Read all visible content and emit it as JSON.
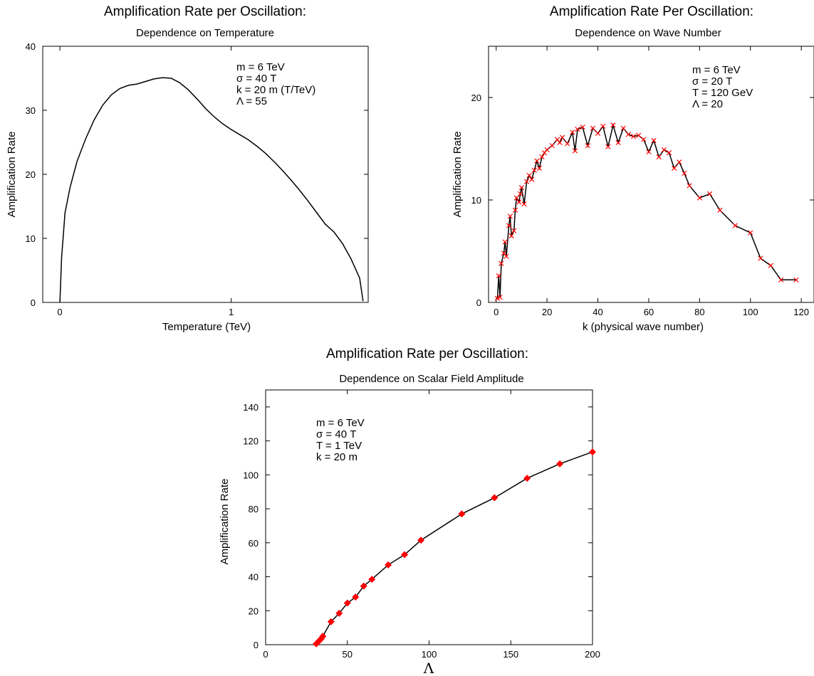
{
  "chart_data": [
    {
      "type": "line",
      "title": "Amplification Rate per Oscillation:",
      "subtitle": "Dependence on Temperature",
      "xlabel": "Temperature (TeV)",
      "ylabel": "Amplification Rate",
      "xlim": [
        -0.1,
        1.8
      ],
      "ylim": [
        0,
        40
      ],
      "x_ticks": [
        0,
        1
      ],
      "y_ticks": [
        0,
        10,
        20,
        30,
        40
      ],
      "grid": false,
      "annotations": [
        "m = 6 TeV",
        "σ = 40 T",
        "k = 20 m (T/TeV)",
        "Λ = 55"
      ],
      "series": [
        {
          "color": "#000000",
          "marker": "none",
          "x": [
            0.0,
            0.01,
            0.03,
            0.06,
            0.1,
            0.15,
            0.2,
            0.25,
            0.3,
            0.35,
            0.4,
            0.45,
            0.5,
            0.55,
            0.6,
            0.65,
            0.7,
            0.75,
            0.8,
            0.85,
            0.9,
            0.95,
            1.0,
            1.05,
            1.1,
            1.15,
            1.2,
            1.25,
            1.3,
            1.35,
            1.4,
            1.45,
            1.5,
            1.55,
            1.6,
            1.65,
            1.7,
            1.75,
            1.77
          ],
          "y": [
            0,
            7,
            14,
            18,
            22,
            25.5,
            28.5,
            30.8,
            32.4,
            33.4,
            33.9,
            34.1,
            34.5,
            34.9,
            35.1,
            35.0,
            34.3,
            33.2,
            31.8,
            30.3,
            29.0,
            27.9,
            27.0,
            26.2,
            25.4,
            24.4,
            23.3,
            22.0,
            20.6,
            19.1,
            17.5,
            15.8,
            14.0,
            12.2,
            11.0,
            9.2,
            6.8,
            3.8,
            0.2
          ]
        }
      ]
    },
    {
      "type": "line",
      "title": "Amplification Rate Per Oscillation:",
      "subtitle": "Dependence on Wave Number",
      "xlabel": "k (physical wave number)",
      "ylabel": "Amplification Rate",
      "xlim": [
        -3,
        125
      ],
      "ylim": [
        0,
        25
      ],
      "x_ticks": [
        0,
        20,
        40,
        60,
        80,
        100,
        120
      ],
      "y_ticks": [
        0,
        10,
        20
      ],
      "grid": false,
      "annotations": [
        "m = 6 TeV",
        "σ = 20 T",
        "T = 120 GeV",
        "Λ = 20"
      ],
      "series": [
        {
          "color": "#000000",
          "marker": "x",
          "marker_color": "#ff0000",
          "x": [
            0.5,
            1,
            1.5,
            2,
            3,
            3.5,
            4,
            5,
            5.5,
            6,
            7,
            7.5,
            8,
            9,
            9.5,
            10,
            11,
            12,
            13,
            14,
            15,
            16,
            17,
            18,
            19,
            20,
            22,
            24,
            25,
            26,
            28,
            30,
            31,
            32,
            34,
            36,
            38,
            40,
            42,
            44,
            46,
            48,
            50,
            52,
            54,
            56,
            58,
            60,
            62,
            64,
            66,
            68,
            70,
            72,
            74,
            76,
            80,
            84,
            88,
            94,
            100,
            104,
            108,
            112,
            118
          ],
          "y": [
            0.4,
            2.6,
            0.5,
            3.8,
            4.8,
            5.9,
            4.5,
            7.5,
            8.4,
            6.5,
            7.0,
            9.0,
            10.2,
            9.8,
            10.6,
            11.2,
            9.6,
            11.8,
            12.4,
            12.0,
            12.9,
            13.8,
            13.1,
            14.2,
            14.6,
            14.9,
            15.3,
            15.9,
            15.6,
            16.1,
            15.5,
            16.6,
            14.8,
            16.9,
            17.1,
            15.3,
            17.0,
            16.5,
            17.2,
            15.2,
            17.3,
            15.6,
            17.0,
            16.4,
            16.2,
            16.3,
            15.9,
            14.7,
            15.8,
            14.2,
            14.9,
            14.6,
            13.1,
            13.7,
            12.6,
            11.4,
            10.2,
            10.6,
            9.0,
            7.5,
            6.8,
            4.3,
            3.6,
            2.2,
            2.2
          ]
        }
      ]
    },
    {
      "type": "line",
      "title": "Amplification Rate per Oscillation:",
      "subtitle": "Dependence on Scalar Field Amplitude",
      "xlabel": "Λ",
      "ylabel": "Amplification Rate",
      "xlim": [
        0,
        200
      ],
      "ylim": [
        0,
        150
      ],
      "x_ticks": [
        0,
        50,
        100,
        150,
        200
      ],
      "y_ticks": [
        0,
        20,
        40,
        60,
        80,
        100,
        120,
        140
      ],
      "grid": false,
      "annotations": [
        "m   =   6  TeV",
        "σ   =  40 T",
        "T   =   1  TeV",
        "k   =  20  m"
      ],
      "series": [
        {
          "color": "#000000",
          "marker": "diamond",
          "marker_color": "#ff0000",
          "x": [
            31,
            32,
            33,
            34,
            35,
            40,
            45,
            50,
            55,
            60,
            65,
            75,
            85,
            95,
            120,
            140,
            160,
            180,
            200
          ],
          "y": [
            0.5,
            1.5,
            2.5,
            3.5,
            5,
            13.5,
            18.5,
            24.5,
            28,
            34.5,
            38.5,
            47,
            53,
            61.5,
            77,
            86.5,
            98,
            106.5,
            113.5
          ]
        }
      ]
    }
  ]
}
